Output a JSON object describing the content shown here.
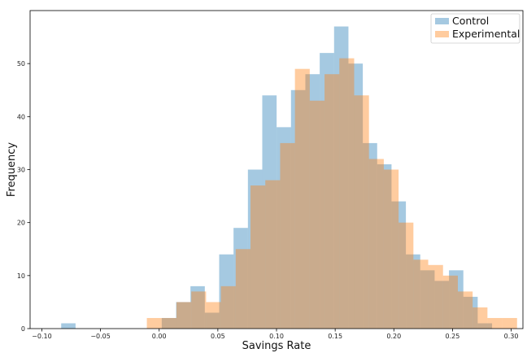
{
  "chart_data": {
    "type": "histogram",
    "title": "",
    "xlabel": "Savings Rate",
    "ylabel": "Frequency",
    "xlim": [
      -0.11,
      0.31
    ],
    "ylim": [
      0,
      60
    ],
    "xticks": [
      -0.1,
      -0.05,
      0.0,
      0.05,
      0.1,
      0.15,
      0.2,
      0.25,
      0.3
    ],
    "xtick_labels": [
      "−0.10",
      "−0.05",
      "0.00",
      "0.05",
      "0.10",
      "0.15",
      "0.20",
      "0.25",
      "0.30"
    ],
    "yticks": [
      0,
      10,
      20,
      30,
      40,
      50
    ],
    "ytick_labels": [
      "0",
      "10",
      "20",
      "30",
      "40",
      "50"
    ],
    "grid": false,
    "legend_position": "top-right",
    "series": [
      {
        "name": "Control",
        "color": "#1f77b4",
        "alpha": 0.4,
        "bin_start": -0.0835,
        "bin_width": 0.01224,
        "counts": [
          1,
          0,
          0,
          0,
          0,
          0,
          0,
          2,
          5,
          8,
          3,
          14,
          19,
          30,
          44,
          38,
          45,
          48,
          52,
          57,
          50,
          35,
          31,
          24,
          14,
          11,
          9,
          11,
          6,
          1
        ]
      },
      {
        "name": "Experimental",
        "color": "#ff7f0e",
        "alpha": 0.4,
        "bin_start": -0.0105,
        "bin_width": 0.01262,
        "counts": [
          2,
          2,
          5,
          7,
          5,
          8,
          15,
          27,
          28,
          35,
          49,
          43,
          48,
          51,
          44,
          32,
          30,
          20,
          13,
          12,
          10,
          7,
          4,
          2,
          2,
          0,
          1
        ]
      }
    ]
  }
}
